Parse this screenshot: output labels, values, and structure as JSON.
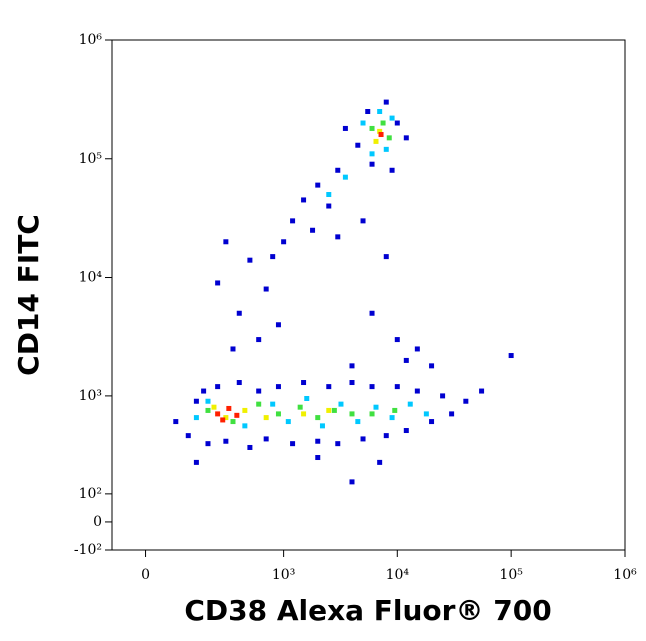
{
  "chart_data": {
    "type": "scatter",
    "xlabel": "CD38 Alexa Fluor® 700",
    "ylabel": "CD14 FITC",
    "xscale": "biexponential",
    "yscale": "biexponential",
    "xlim": [
      -90,
      1000000
    ],
    "ylim": [
      -100,
      1000000
    ],
    "xticks": [
      0,
      {
        "value": 1000,
        "label": "10³"
      },
      {
        "value": 10000,
        "label": "10⁴"
      },
      {
        "value": 100000,
        "label": "10⁵"
      },
      {
        "value": 1000000,
        "label": "10⁶"
      }
    ],
    "yticks": [
      {
        "value": -100,
        "label": "-10²"
      },
      0,
      {
        "value": 100,
        "label": "10²"
      },
      {
        "value": 1000,
        "label": "10³"
      },
      {
        "value": 10000,
        "label": "10⁴"
      },
      {
        "value": 100000,
        "label": "10⁵"
      },
      {
        "value": 1000000,
        "label": "10⁶"
      }
    ],
    "series": [
      {
        "color": "#0000d0",
        "x": [
          80,
          120,
          150,
          180,
          200,
          250,
          300,
          400,
          500,
          600,
          700,
          900,
          1200,
          1500,
          2000,
          2500,
          3000,
          4000,
          5000,
          6000,
          8000,
          10000,
          12000,
          15000,
          20000,
          25000,
          30000,
          40000,
          55000,
          100000,
          300,
          250,
          400,
          500,
          600,
          700,
          350,
          800,
          1000,
          1200,
          1500,
          2000,
          2500,
          3000,
          1800,
          900,
          5000,
          8000,
          6000,
          10000,
          12000,
          4000,
          15000,
          20000,
          3000,
          5500,
          8000,
          10000,
          4500,
          12000,
          6000,
          9000,
          3500,
          150,
          2000,
          4000,
          7000
        ],
        "y": [
          600,
          450,
          900,
          1100,
          380,
          1200,
          400,
          1300,
          350,
          1100,
          420,
          1200,
          380,
          1300,
          400,
          1200,
          380,
          1300,
          420,
          1200,
          450,
          1200,
          500,
          1100,
          600,
          1000,
          700,
          900,
          1100,
          2200,
          20000,
          9000,
          5000,
          14000,
          3000,
          8000,
          2500,
          15000,
          20000,
          30000,
          45000,
          60000,
          40000,
          80000,
          25000,
          4000,
          30000,
          15000,
          5000,
          3000,
          2000,
          1800,
          2500,
          1800,
          22000,
          250000,
          300000,
          200000,
          130000,
          150000,
          90000,
          80000,
          180000,
          250,
          280,
          150,
          250
        ]
      },
      {
        "color": "#00c8ff",
        "x": [
          150,
          200,
          450,
          800,
          1100,
          1600,
          2200,
          3200,
          4500,
          6500,
          9000,
          13000,
          18000,
          5000,
          9000,
          6000,
          8000,
          2500,
          3500,
          7000
        ],
        "y": [
          650,
          900,
          550,
          850,
          600,
          950,
          550,
          850,
          600,
          800,
          650,
          850,
          700,
          200000,
          220000,
          110000,
          120000,
          50000,
          70000,
          250000
        ]
      },
      {
        "color": "#40e040",
        "x": [
          200,
          350,
          600,
          900,
          1400,
          2000,
          2800,
          4000,
          6000,
          9500,
          6000,
          8500,
          7500
        ],
        "y": [
          750,
          600,
          850,
          700,
          800,
          650,
          750,
          700,
          700,
          750,
          180000,
          150000,
          200000
        ]
      },
      {
        "color": "#f0f000",
        "x": [
          230,
          300,
          450,
          700,
          1500,
          2500,
          7000,
          6500
        ],
        "y": [
          800,
          650,
          750,
          650,
          700,
          750,
          170000,
          140000
        ]
      },
      {
        "color": "#ff2000",
        "x": [
          250,
          320,
          380,
          280,
          7200
        ],
        "y": [
          700,
          780,
          680,
          620,
          160000
        ]
      }
    ]
  }
}
